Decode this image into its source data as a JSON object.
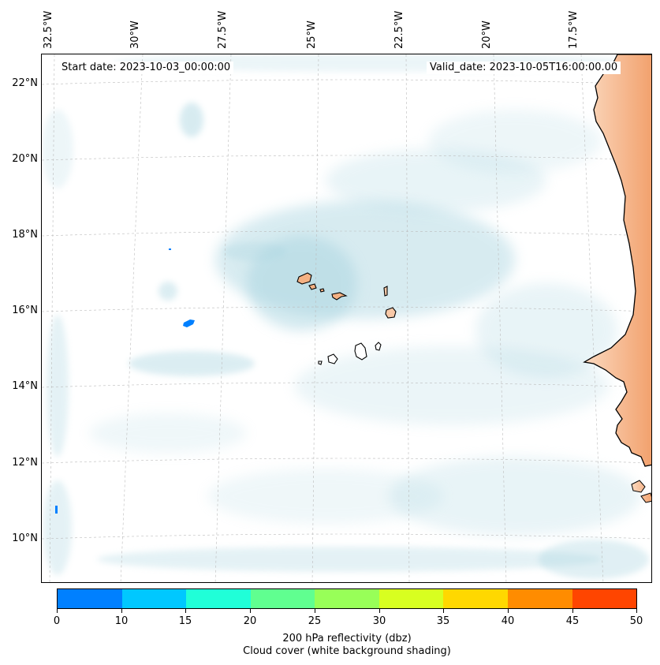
{
  "map": {
    "start_date": "Start date: 2023-10-03_00:00:00",
    "valid_date": "Valid_date: 2023-10-05T16:00:00.00",
    "lat_labels": [
      "22°N",
      "20°N",
      "18°N",
      "16°N",
      "14°N",
      "12°N",
      "10°N"
    ],
    "lon_labels": [
      "32.5°W",
      "30°W",
      "27.5°W",
      "25°W",
      "22.5°W",
      "20°W",
      "17.5°W"
    ],
    "land_color": "#f4b183",
    "cloud_color": "#a8d4e0"
  },
  "colorbar": {
    "ticks": [
      "0",
      "10",
      "15",
      "20",
      "25",
      "30",
      "35",
      "40",
      "45",
      "50"
    ],
    "colors": [
      "#0080ff",
      "#00c8ff",
      "#20ffd8",
      "#60ff90",
      "#98ff58",
      "#d8ff20",
      "#ffd800",
      "#ff8c00",
      "#ff4500"
    ],
    "label_line1": "200 hPa reflectivity (dbz)",
    "label_line2": "Cloud cover (white background shading)"
  }
}
